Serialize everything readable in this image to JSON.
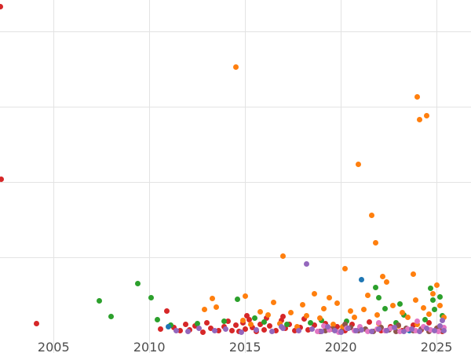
{
  "chart_data": {
    "type": "scatter",
    "title": "",
    "xlabel": "",
    "ylabel": "",
    "grid": "on",
    "legend": "none",
    "background_color": "#ffffff",
    "grid_color": "#e3e3e3",
    "tick_label_color": "#4d4d4d",
    "xlim": [
      2002.2,
      2026.8
    ],
    "ylim": [
      -6.5,
      110.4
    ],
    "x_ticks": [
      {
        "value": 2005,
        "label": "2005"
      },
      {
        "value": 2010,
        "label": "2010"
      },
      {
        "value": 2015,
        "label": "2015"
      },
      {
        "value": 2020,
        "label": "2020"
      },
      {
        "value": 2025,
        "label": "2025"
      }
    ],
    "y_gridline_values": [
      25,
      50,
      75,
      100
    ],
    "marker_diameter_px": 7,
    "series": [
      {
        "name": "red",
        "color": "#d62728",
        "points": [
          [
            2002.2,
            108.3
          ],
          [
            2002.25,
            51.0
          ],
          [
            2004.1,
            3.2
          ],
          [
            2010.6,
            1.5
          ],
          [
            2010.9,
            7.5
          ],
          [
            2011.3,
            2.0
          ],
          [
            2011.6,
            0.8
          ],
          [
            2011.9,
            3.0
          ],
          [
            2012.1,
            1.2
          ],
          [
            2012.4,
            2.5
          ],
          [
            2012.8,
            0.5
          ],
          [
            2013.0,
            3.5
          ],
          [
            2013.2,
            1.8
          ],
          [
            2013.6,
            0.9
          ],
          [
            2013.9,
            2.2
          ],
          [
            2014.1,
            4.0
          ],
          [
            2014.3,
            1.0
          ],
          [
            2014.5,
            2.8
          ],
          [
            2014.7,
            0.6
          ],
          [
            2014.9,
            3.6
          ],
          [
            2015.0,
            1.5
          ],
          [
            2015.2,
            4.5
          ],
          [
            2015.4,
            2.0
          ],
          [
            2015.6,
            0.7
          ],
          [
            2015.8,
            3.0
          ],
          [
            2016.0,
            1.2
          ],
          [
            2016.3,
            2.4
          ],
          [
            2016.6,
            0.8
          ],
          [
            2016.9,
            4.2
          ],
          [
            2017.1,
            1.6
          ],
          [
            2017.3,
            3.1
          ],
          [
            2017.6,
            0.9
          ],
          [
            2017.9,
            2.0
          ],
          [
            2018.1,
            4.8
          ],
          [
            2018.3,
            1.1
          ],
          [
            2018.6,
            2.6
          ],
          [
            2018.9,
            0.7
          ],
          [
            2019.2,
            3.3
          ],
          [
            2019.5,
            1.4
          ],
          [
            2019.8,
            2.1
          ],
          [
            2020.2,
            0.8
          ],
          [
            2020.6,
            2.9
          ],
          [
            2021.0,
            1.3
          ],
          [
            2021.5,
            3.8
          ],
          [
            2022.1,
            1.0
          ],
          [
            2022.6,
            2.3
          ],
          [
            2023.2,
            0.9
          ],
          [
            2023.8,
            2.7
          ],
          [
            2024.2,
            1.2
          ],
          [
            2024.6,
            3.4
          ],
          [
            2025.0,
            1.8
          ],
          [
            2025.3,
            0.6
          ],
          [
            2017.0,
            5.5
          ],
          [
            2016.1,
            5.0
          ],
          [
            2015.1,
            5.8
          ]
        ]
      },
      {
        "name": "green",
        "color": "#2ca02c",
        "points": [
          [
            2007.4,
            10.9
          ],
          [
            2008.0,
            5.5
          ],
          [
            2009.4,
            16.4
          ],
          [
            2010.1,
            11.7
          ],
          [
            2010.4,
            4.5
          ],
          [
            2011.1,
            2.8
          ],
          [
            2012.5,
            3.2
          ],
          [
            2013.9,
            4.1
          ],
          [
            2014.6,
            11.2
          ],
          [
            2015.5,
            5.0
          ],
          [
            2016.0,
            3.8
          ],
          [
            2017.2,
            2.9
          ],
          [
            2018.4,
            3.4
          ],
          [
            2019.0,
            4.2
          ],
          [
            2020.3,
            4.0
          ],
          [
            2021.8,
            15.3
          ],
          [
            2022.0,
            11.7
          ],
          [
            2022.3,
            8.1
          ],
          [
            2023.1,
            9.8
          ],
          [
            2023.3,
            6.2
          ],
          [
            2024.7,
            15.0
          ],
          [
            2024.8,
            11.0
          ],
          [
            2024.9,
            7.8
          ],
          [
            2025.2,
            12.1
          ],
          [
            2025.3,
            5.9
          ],
          [
            2024.4,
            4.6
          ],
          [
            2022.9,
            3.5
          ]
        ]
      },
      {
        "name": "blue",
        "color": "#1f77b4",
        "points": [
          [
            2021.1,
            17.9
          ],
          [
            2020.4,
            1.8
          ],
          [
            2023.6,
            0.9
          ],
          [
            2011.0,
            2.3
          ]
        ]
      },
      {
        "name": "orange",
        "color": "#ff7f0e",
        "points": [
          [
            2014.5,
            88.3
          ],
          [
            2024.0,
            78.4
          ],
          [
            2024.5,
            72.2
          ],
          [
            2024.1,
            70.9
          ],
          [
            2020.9,
            56.1
          ],
          [
            2021.6,
            39.2
          ],
          [
            2021.8,
            29.9
          ],
          [
            2017.0,
            25.5
          ],
          [
            2020.2,
            21.3
          ],
          [
            2023.8,
            19.5
          ],
          [
            2022.2,
            18.7
          ],
          [
            2022.4,
            16.9
          ],
          [
            2025.0,
            16.1
          ],
          [
            2024.8,
            13.2
          ],
          [
            2018.6,
            13.0
          ],
          [
            2019.4,
            11.8
          ],
          [
            2019.8,
            10.1
          ],
          [
            2016.5,
            10.3
          ],
          [
            2013.3,
            11.5
          ],
          [
            2013.5,
            8.8
          ],
          [
            2012.9,
            7.9
          ],
          [
            2015.8,
            7.2
          ],
          [
            2016.2,
            6.1
          ],
          [
            2017.4,
            6.8
          ],
          [
            2018.2,
            5.9
          ],
          [
            2018.9,
            5.1
          ],
          [
            2019.1,
            8.2
          ],
          [
            2020.5,
            7.4
          ],
          [
            2020.7,
            5.3
          ],
          [
            2021.2,
            8.0
          ],
          [
            2021.9,
            6.2
          ],
          [
            2022.7,
            9.1
          ],
          [
            2023.2,
            7.0
          ],
          [
            2023.5,
            5.2
          ],
          [
            2024.3,
            8.4
          ],
          [
            2024.6,
            6.3
          ],
          [
            2025.2,
            9.2
          ],
          [
            2025.4,
            5.4
          ],
          [
            2014.9,
            4.2
          ],
          [
            2015.3,
            3.1
          ],
          [
            2016.8,
            3.3
          ],
          [
            2017.7,
            2.2
          ],
          [
            2019.6,
            3.0
          ],
          [
            2020.1,
            2.1
          ],
          [
            2022.0,
            3.2
          ],
          [
            2023.0,
            2.4
          ],
          [
            2024.0,
            3.1
          ],
          [
            2025.1,
            2.0
          ],
          [
            2015.0,
            12.4
          ],
          [
            2023.9,
            11.1
          ],
          [
            2021.4,
            12.6
          ],
          [
            2018.0,
            9.4
          ]
        ]
      },
      {
        "name": "brown",
        "color": "#8c564b",
        "points": [
          [
            2019.2,
            0.8
          ],
          [
            2019.6,
            1.5
          ],
          [
            2020.0,
            0.6
          ],
          [
            2020.5,
            1.9
          ],
          [
            2020.9,
            0.9
          ],
          [
            2021.3,
            1.4
          ],
          [
            2021.7,
            0.7
          ],
          [
            2022.1,
            2.0
          ],
          [
            2022.5,
            1.1
          ],
          [
            2022.9,
            0.6
          ],
          [
            2023.4,
            1.6
          ],
          [
            2023.8,
            0.8
          ],
          [
            2024.2,
            1.3
          ],
          [
            2024.6,
            0.7
          ],
          [
            2025.0,
            1.7
          ],
          [
            2025.3,
            1.0
          ],
          [
            2020.2,
            3.0
          ],
          [
            2023.0,
            2.6
          ]
        ]
      },
      {
        "name": "pink",
        "color": "#e377c2",
        "points": [
          [
            2018.8,
            0.7
          ],
          [
            2019.4,
            1.2
          ],
          [
            2019.9,
            0.5
          ],
          [
            2020.3,
            1.6
          ],
          [
            2020.7,
            0.9
          ],
          [
            2021.0,
            2.1
          ],
          [
            2021.4,
            0.6
          ],
          [
            2021.9,
            1.3
          ],
          [
            2022.3,
            0.8
          ],
          [
            2022.6,
            1.8
          ],
          [
            2023.1,
            0.6
          ],
          [
            2023.5,
            1.4
          ],
          [
            2023.9,
            0.9
          ],
          [
            2024.3,
            2.2
          ],
          [
            2024.7,
            1.1
          ],
          [
            2025.1,
            0.7
          ],
          [
            2025.4,
            1.9
          ],
          [
            2022.0,
            3.4
          ],
          [
            2024.0,
            4.1
          ],
          [
            2019.1,
            2.5
          ]
        ]
      },
      {
        "name": "purple",
        "color": "#9467bd",
        "points": [
          [
            2018.2,
            23.1
          ],
          [
            2011.4,
            1.0
          ],
          [
            2012.0,
            0.6
          ],
          [
            2012.6,
            1.8
          ],
          [
            2013.4,
            0.8
          ],
          [
            2014.0,
            1.4
          ],
          [
            2014.8,
            0.5
          ],
          [
            2015.6,
            1.1
          ],
          [
            2016.4,
            0.7
          ],
          [
            2017.0,
            1.6
          ],
          [
            2017.8,
            0.9
          ],
          [
            2018.5,
            1.3
          ],
          [
            2019.0,
            0.6
          ],
          [
            2019.3,
            2.2
          ],
          [
            2019.7,
            1.0
          ],
          [
            2020.0,
            0.5
          ],
          [
            2020.4,
            1.7
          ],
          [
            2020.8,
            0.8
          ],
          [
            2021.1,
            1.2
          ],
          [
            2021.6,
            0.6
          ],
          [
            2022.0,
            1.5
          ],
          [
            2022.4,
            0.9
          ],
          [
            2022.8,
            1.9
          ],
          [
            2023.3,
            0.7
          ],
          [
            2023.7,
            1.3
          ],
          [
            2024.1,
            0.6
          ],
          [
            2024.5,
            1.8
          ],
          [
            2024.9,
            1.0
          ],
          [
            2025.2,
            2.4
          ],
          [
            2025.4,
            0.8
          ],
          [
            2025.3,
            4.3
          ],
          [
            2016.9,
            2.1
          ]
        ]
      }
    ]
  }
}
